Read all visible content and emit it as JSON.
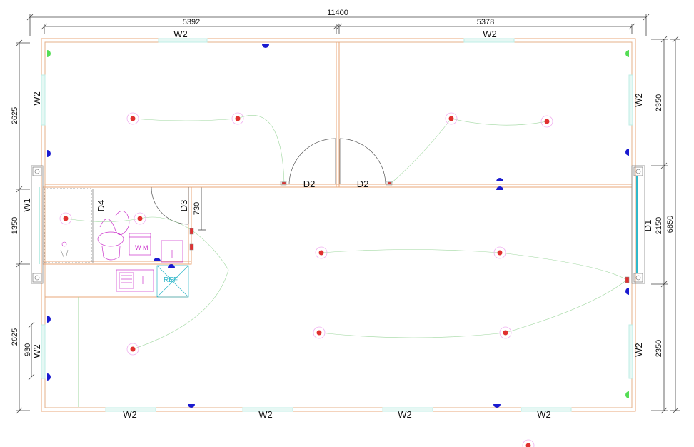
{
  "dimensions": {
    "overall_width": "11400",
    "left_width": "5392",
    "right_width": "5378",
    "overall_height": "6850",
    "left_top": "2625",
    "left_middle": "1350",
    "left_bottom": "2625",
    "left_small": "930",
    "right_top": "2350",
    "right_middle": "2150",
    "right_bottom": "2350",
    "door_d3_width": "730"
  },
  "labels": {
    "w2": "W2",
    "w1": "W1",
    "d1": "D1",
    "d2": "D2",
    "d3": "D3",
    "d4": "D4",
    "wm": "W M",
    "ref": "REF"
  },
  "colors": {
    "wall": "#e8a77a",
    "window": "#bfeee6",
    "light": "#e03030",
    "socket": "#1a1ad0",
    "green_socket": "#55dd55",
    "wiring": "#9fd79f",
    "fixtures": "#cc33cc",
    "cyan": "#2fb7c9"
  }
}
